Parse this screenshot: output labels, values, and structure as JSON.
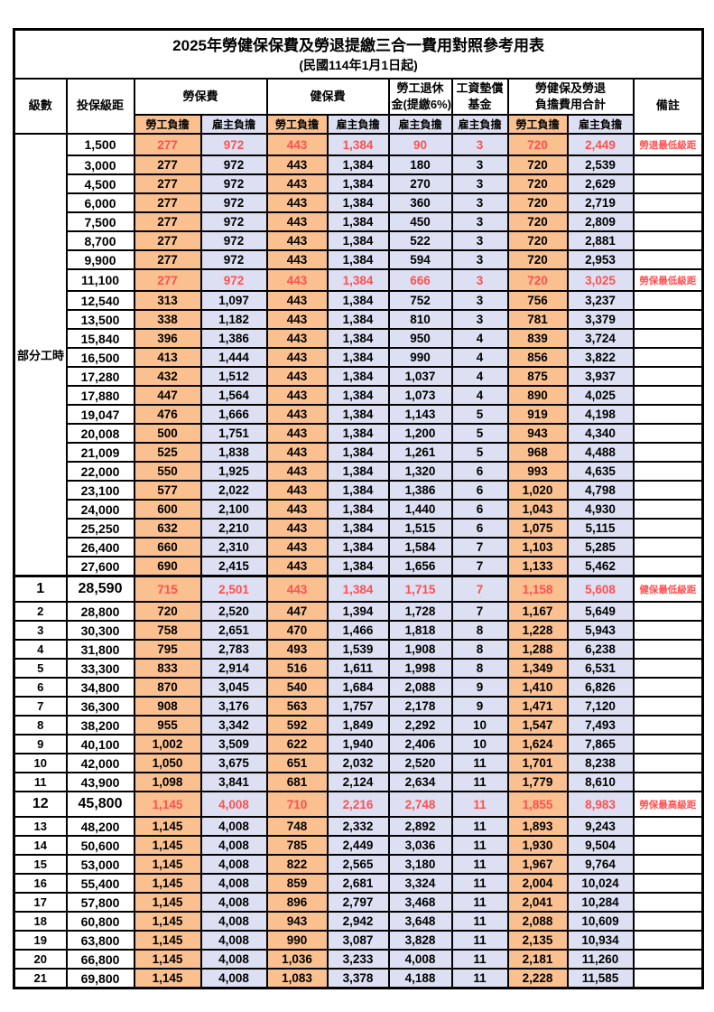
{
  "title": "2025年勞健保保費及勞退提繳三合一費用對照參考用表",
  "subtitle": "(民國114年1月1日起)",
  "columns": {
    "level": "級數",
    "bracket": "投保級距",
    "labor": "勞保費",
    "health": "健保費",
    "pension_l1": "勞工退休",
    "pension_l2": "金(提繳6%)",
    "fund_l1": "工資墊償",
    "fund_l2": "基金",
    "total_l1": "勞健保及勞退",
    "total_l2": "負擔費用合計",
    "note": "備註",
    "employee": "勞工負擔",
    "employer": "雇主負擔"
  },
  "part_time_label": "部分工時",
  "colors": {
    "employee_bg": "#FAC090",
    "employer_bg": "#DDE0F2",
    "highlight_text": "#FF5050",
    "border": "#000000"
  },
  "notes_legend": {
    "pension_min": "勞退最低級距",
    "labor_min": "勞保最低級距",
    "health_min": "健保最低級距",
    "labor_max": "勞保最高級距"
  },
  "rows": [
    {
      "level": "部分工時",
      "level_rowspan": 23,
      "bracket": "1,500",
      "labor_emp": "277",
      "labor_er": "972",
      "health_emp": "443",
      "health_er": "1,384",
      "pension_er": "90",
      "fund_er": "3",
      "total_emp": "720",
      "total_er": "2,449",
      "note": "勞退最低級距",
      "highlight": true
    },
    {
      "no_level": true,
      "bracket": "3,000",
      "labor_emp": "277",
      "labor_er": "972",
      "health_emp": "443",
      "health_er": "1,384",
      "pension_er": "180",
      "fund_er": "3",
      "total_emp": "720",
      "total_er": "2,539",
      "note": ""
    },
    {
      "no_level": true,
      "bracket": "4,500",
      "labor_emp": "277",
      "labor_er": "972",
      "health_emp": "443",
      "health_er": "1,384",
      "pension_er": "270",
      "fund_er": "3",
      "total_emp": "720",
      "total_er": "2,629",
      "note": ""
    },
    {
      "no_level": true,
      "bracket": "6,000",
      "labor_emp": "277",
      "labor_er": "972",
      "health_emp": "443",
      "health_er": "1,384",
      "pension_er": "360",
      "fund_er": "3",
      "total_emp": "720",
      "total_er": "2,719",
      "note": ""
    },
    {
      "no_level": true,
      "bracket": "7,500",
      "labor_emp": "277",
      "labor_er": "972",
      "health_emp": "443",
      "health_er": "1,384",
      "pension_er": "450",
      "fund_er": "3",
      "total_emp": "720",
      "total_er": "2,809",
      "note": ""
    },
    {
      "no_level": true,
      "bracket": "8,700",
      "labor_emp": "277",
      "labor_er": "972",
      "health_emp": "443",
      "health_er": "1,384",
      "pension_er": "522",
      "fund_er": "3",
      "total_emp": "720",
      "total_er": "2,881",
      "note": ""
    },
    {
      "no_level": true,
      "bracket": "9,900",
      "labor_emp": "277",
      "labor_er": "972",
      "health_emp": "443",
      "health_er": "1,384",
      "pension_er": "594",
      "fund_er": "3",
      "total_emp": "720",
      "total_er": "2,953",
      "note": ""
    },
    {
      "no_level": true,
      "bracket": "11,100",
      "labor_emp": "277",
      "labor_er": "972",
      "health_emp": "443",
      "health_er": "1,384",
      "pension_er": "666",
      "fund_er": "3",
      "total_emp": "720",
      "total_er": "3,025",
      "note": "勞保最低級距",
      "highlight": true
    },
    {
      "no_level": true,
      "bracket": "12,540",
      "labor_emp": "313",
      "labor_er": "1,097",
      "health_emp": "443",
      "health_er": "1,384",
      "pension_er": "752",
      "fund_er": "3",
      "total_emp": "756",
      "total_er": "3,237",
      "note": ""
    },
    {
      "no_level": true,
      "bracket": "13,500",
      "labor_emp": "338",
      "labor_er": "1,182",
      "health_emp": "443",
      "health_er": "1,384",
      "pension_er": "810",
      "fund_er": "3",
      "total_emp": "781",
      "total_er": "3,379",
      "note": ""
    },
    {
      "no_level": true,
      "bracket": "15,840",
      "labor_emp": "396",
      "labor_er": "1,386",
      "health_emp": "443",
      "health_er": "1,384",
      "pension_er": "950",
      "fund_er": "4",
      "total_emp": "839",
      "total_er": "3,724",
      "note": ""
    },
    {
      "no_level": true,
      "bracket": "16,500",
      "labor_emp": "413",
      "labor_er": "1,444",
      "health_emp": "443",
      "health_er": "1,384",
      "pension_er": "990",
      "fund_er": "4",
      "total_emp": "856",
      "total_er": "3,822",
      "note": ""
    },
    {
      "no_level": true,
      "bracket": "17,280",
      "labor_emp": "432",
      "labor_er": "1,512",
      "health_emp": "443",
      "health_er": "1,384",
      "pension_er": "1,037",
      "fund_er": "4",
      "total_emp": "875",
      "total_er": "3,937",
      "note": ""
    },
    {
      "no_level": true,
      "bracket": "17,880",
      "labor_emp": "447",
      "labor_er": "1,564",
      "health_emp": "443",
      "health_er": "1,384",
      "pension_er": "1,073",
      "fund_er": "4",
      "total_emp": "890",
      "total_er": "4,025",
      "note": ""
    },
    {
      "no_level": true,
      "bracket": "19,047",
      "labor_emp": "476",
      "labor_er": "1,666",
      "health_emp": "443",
      "health_er": "1,384",
      "pension_er": "1,143",
      "fund_er": "5",
      "total_emp": "919",
      "total_er": "4,198",
      "note": ""
    },
    {
      "no_level": true,
      "bracket": "20,008",
      "labor_emp": "500",
      "labor_er": "1,751",
      "health_emp": "443",
      "health_er": "1,384",
      "pension_er": "1,200",
      "fund_er": "5",
      "total_emp": "943",
      "total_er": "4,340",
      "note": ""
    },
    {
      "no_level": true,
      "bracket": "21,009",
      "labor_emp": "525",
      "labor_er": "1,838",
      "health_emp": "443",
      "health_er": "1,384",
      "pension_er": "1,261",
      "fund_er": "5",
      "total_emp": "968",
      "total_er": "4,488",
      "note": ""
    },
    {
      "no_level": true,
      "bracket": "22,000",
      "labor_emp": "550",
      "labor_er": "1,925",
      "health_emp": "443",
      "health_er": "1,384",
      "pension_er": "1,320",
      "fund_er": "6",
      "total_emp": "993",
      "total_er": "4,635",
      "note": ""
    },
    {
      "no_level": true,
      "bracket": "23,100",
      "labor_emp": "577",
      "labor_er": "2,022",
      "health_emp": "443",
      "health_er": "1,384",
      "pension_er": "1,386",
      "fund_er": "6",
      "total_emp": "1,020",
      "total_er": "4,798",
      "note": ""
    },
    {
      "no_level": true,
      "bracket": "24,000",
      "labor_emp": "600",
      "labor_er": "2,100",
      "health_emp": "443",
      "health_er": "1,384",
      "pension_er": "1,440",
      "fund_er": "6",
      "total_emp": "1,043",
      "total_er": "4,930",
      "note": ""
    },
    {
      "no_level": true,
      "bracket": "25,250",
      "labor_emp": "632",
      "labor_er": "2,210",
      "health_emp": "443",
      "health_er": "1,384",
      "pension_er": "1,515",
      "fund_er": "6",
      "total_emp": "1,075",
      "total_er": "5,115",
      "note": ""
    },
    {
      "no_level": true,
      "bracket": "26,400",
      "labor_emp": "660",
      "labor_er": "2,310",
      "health_emp": "443",
      "health_er": "1,384",
      "pension_er": "1,584",
      "fund_er": "7",
      "total_emp": "1,103",
      "total_er": "5,285",
      "note": ""
    },
    {
      "no_level": true,
      "bracket": "27,600",
      "labor_emp": "690",
      "labor_er": "2,415",
      "health_emp": "443",
      "health_er": "1,384",
      "pension_er": "1,656",
      "fund_er": "7",
      "total_emp": "1,133",
      "total_er": "5,462",
      "note": ""
    },
    {
      "level": "1",
      "bracket": "28,590",
      "labor_emp": "715",
      "labor_er": "2,501",
      "health_emp": "443",
      "health_er": "1,384",
      "pension_er": "1,715",
      "fund_er": "7",
      "total_emp": "1,158",
      "total_er": "5,608",
      "note": "健保最低級距",
      "highlight": true,
      "emph": true,
      "section_start": true
    },
    {
      "level": "2",
      "bracket": "28,800",
      "labor_emp": "720",
      "labor_er": "2,520",
      "health_emp": "447",
      "health_er": "1,394",
      "pension_er": "1,728",
      "fund_er": "7",
      "total_emp": "1,167",
      "total_er": "5,649",
      "note": ""
    },
    {
      "level": "3",
      "bracket": "30,300",
      "labor_emp": "758",
      "labor_er": "2,651",
      "health_emp": "470",
      "health_er": "1,466",
      "pension_er": "1,818",
      "fund_er": "8",
      "total_emp": "1,228",
      "total_er": "5,943",
      "note": ""
    },
    {
      "level": "4",
      "bracket": "31,800",
      "labor_emp": "795",
      "labor_er": "2,783",
      "health_emp": "493",
      "health_er": "1,539",
      "pension_er": "1,908",
      "fund_er": "8",
      "total_emp": "1,288",
      "total_er": "6,238",
      "note": ""
    },
    {
      "level": "5",
      "bracket": "33,300",
      "labor_emp": "833",
      "labor_er": "2,914",
      "health_emp": "516",
      "health_er": "1,611",
      "pension_er": "1,998",
      "fund_er": "8",
      "total_emp": "1,349",
      "total_er": "6,531",
      "note": ""
    },
    {
      "level": "6",
      "bracket": "34,800",
      "labor_emp": "870",
      "labor_er": "3,045",
      "health_emp": "540",
      "health_er": "1,684",
      "pension_er": "2,088",
      "fund_er": "9",
      "total_emp": "1,410",
      "total_er": "6,826",
      "note": ""
    },
    {
      "level": "7",
      "bracket": "36,300",
      "labor_emp": "908",
      "labor_er": "3,176",
      "health_emp": "563",
      "health_er": "1,757",
      "pension_er": "2,178",
      "fund_er": "9",
      "total_emp": "1,471",
      "total_er": "7,120",
      "note": ""
    },
    {
      "level": "8",
      "bracket": "38,200",
      "labor_emp": "955",
      "labor_er": "3,342",
      "health_emp": "592",
      "health_er": "1,849",
      "pension_er": "2,292",
      "fund_er": "10",
      "total_emp": "1,547",
      "total_er": "7,493",
      "note": ""
    },
    {
      "level": "9",
      "bracket": "40,100",
      "labor_emp": "1,002",
      "labor_er": "3,509",
      "health_emp": "622",
      "health_er": "1,940",
      "pension_er": "2,406",
      "fund_er": "10",
      "total_emp": "1,624",
      "total_er": "7,865",
      "note": ""
    },
    {
      "level": "10",
      "bracket": "42,000",
      "labor_emp": "1,050",
      "labor_er": "3,675",
      "health_emp": "651",
      "health_er": "2,032",
      "pension_er": "2,520",
      "fund_er": "11",
      "total_emp": "1,701",
      "total_er": "8,238",
      "note": ""
    },
    {
      "level": "11",
      "bracket": "43,900",
      "labor_emp": "1,098",
      "labor_er": "3,841",
      "health_emp": "681",
      "health_er": "2,124",
      "pension_er": "2,634",
      "fund_er": "11",
      "total_emp": "1,779",
      "total_er": "8,610",
      "note": ""
    },
    {
      "level": "12",
      "bracket": "45,800",
      "labor_emp": "1,145",
      "labor_er": "4,008",
      "health_emp": "710",
      "health_er": "2,216",
      "pension_er": "2,748",
      "fund_er": "11",
      "total_emp": "1,855",
      "total_er": "8,983",
      "note": "勞保最高級距",
      "highlight": true,
      "emph": true
    },
    {
      "level": "13",
      "bracket": "48,200",
      "labor_emp": "1,145",
      "labor_er": "4,008",
      "health_emp": "748",
      "health_er": "2,332",
      "pension_er": "2,892",
      "fund_er": "11",
      "total_emp": "1,893",
      "total_er": "9,243",
      "note": ""
    },
    {
      "level": "14",
      "bracket": "50,600",
      "labor_emp": "1,145",
      "labor_er": "4,008",
      "health_emp": "785",
      "health_er": "2,449",
      "pension_er": "3,036",
      "fund_er": "11",
      "total_emp": "1,930",
      "total_er": "9,504",
      "note": ""
    },
    {
      "level": "15",
      "bracket": "53,000",
      "labor_emp": "1,145",
      "labor_er": "4,008",
      "health_emp": "822",
      "health_er": "2,565",
      "pension_er": "3,180",
      "fund_er": "11",
      "total_emp": "1,967",
      "total_er": "9,764",
      "note": ""
    },
    {
      "level": "16",
      "bracket": "55,400",
      "labor_emp": "1,145",
      "labor_er": "4,008",
      "health_emp": "859",
      "health_er": "2,681",
      "pension_er": "3,324",
      "fund_er": "11",
      "total_emp": "2,004",
      "total_er": "10,024",
      "note": ""
    },
    {
      "level": "17",
      "bracket": "57,800",
      "labor_emp": "1,145",
      "labor_er": "4,008",
      "health_emp": "896",
      "health_er": "2,797",
      "pension_er": "3,468",
      "fund_er": "11",
      "total_emp": "2,041",
      "total_er": "10,284",
      "note": ""
    },
    {
      "level": "18",
      "bracket": "60,800",
      "labor_emp": "1,145",
      "labor_er": "4,008",
      "health_emp": "943",
      "health_er": "2,942",
      "pension_er": "3,648",
      "fund_er": "11",
      "total_emp": "2,088",
      "total_er": "10,609",
      "note": ""
    },
    {
      "level": "19",
      "bracket": "63,800",
      "labor_emp": "1,145",
      "labor_er": "4,008",
      "health_emp": "990",
      "health_er": "3,087",
      "pension_er": "3,828",
      "fund_er": "11",
      "total_emp": "2,135",
      "total_er": "10,934",
      "note": ""
    },
    {
      "level": "20",
      "bracket": "66,800",
      "labor_emp": "1,145",
      "labor_er": "4,008",
      "health_emp": "1,036",
      "health_er": "3,233",
      "pension_er": "4,008",
      "fund_er": "11",
      "total_emp": "2,181",
      "total_er": "11,260",
      "note": ""
    },
    {
      "level": "21",
      "bracket": "69,800",
      "labor_emp": "1,145",
      "labor_er": "4,008",
      "health_emp": "1,083",
      "health_er": "3,378",
      "pension_er": "4,188",
      "fund_er": "11",
      "total_emp": "2,228",
      "total_er": "11,585",
      "note": ""
    }
  ]
}
